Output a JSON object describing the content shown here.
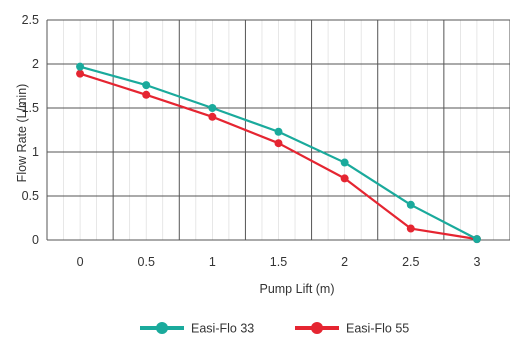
{
  "chart_data": {
    "type": "line",
    "x": [
      0,
      0.5,
      1,
      1.5,
      2,
      2.5,
      3
    ],
    "x_tick_labels": [
      "0",
      "0.5",
      "1",
      "1.5",
      "2",
      "2.5",
      "3"
    ],
    "y_tick_labels": [
      "0",
      "0.5",
      "1",
      "1.5",
      "2",
      "2.5"
    ],
    "xlabel": "Pump Lift (m)",
    "ylabel": "Flow Rate (L/min)",
    "xlim": [
      -0.25,
      3.25
    ],
    "ylim": [
      0,
      2.5
    ],
    "grid": true,
    "legend_position": "bottom",
    "series": [
      {
        "name": "Easi-Flo 33",
        "color": "#1aaa9c",
        "values": [
          1.97,
          1.76,
          1.5,
          1.23,
          0.88,
          0.4,
          0.01
        ]
      },
      {
        "name": "Easi-Flo 55",
        "color": "#e52531",
        "values": [
          1.89,
          1.65,
          1.4,
          1.1,
          0.7,
          0.13,
          0.01
        ]
      }
    ]
  }
}
